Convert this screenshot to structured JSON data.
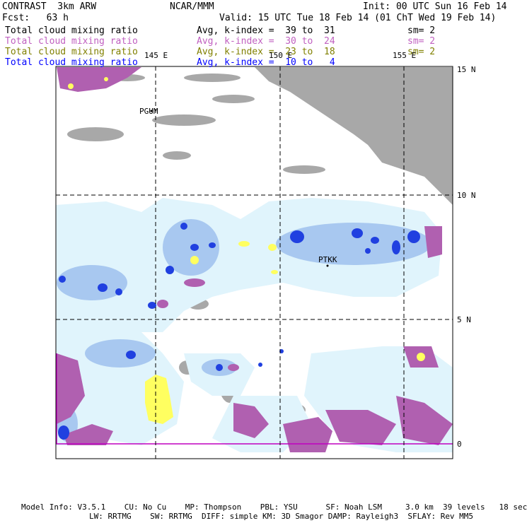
{
  "header": {
    "model": "CONTRAST  3km ARW",
    "org": "NCAR/MMM",
    "init": "Init: 00 UTC Sun 16 Feb 14",
    "fcst": "Fcst:   63 h",
    "valid": "Valid: 15 UTC Tue 18 Feb 14 (01 ChT Wed 19 Feb 14)"
  },
  "fields": [
    {
      "name": "Total cloud mixing ratio",
      "avg": "Avg, k-index =  39 to  31",
      "sm": "sm= 2",
      "color": "#000000"
    },
    {
      "name": "Total cloud mixing ratio",
      "avg": "Avg, k-index =  30 to  24",
      "sm": "sm= 2",
      "color": "#c060c0"
    },
    {
      "name": "Total cloud mixing ratio",
      "avg": "Avg, k-index =  23 to  18",
      "sm": "sm= 2",
      "color": "#808000"
    },
    {
      "name": "Total cloud mixing ratio",
      "avg": "Avg, k-index =  10 to   4",
      "sm": "",
      "color": "#0000ff"
    }
  ],
  "axes": {
    "lon_labels": [
      "145 E",
      "150 E",
      "155 E"
    ],
    "lat_labels": [
      "15 N",
      "10 N",
      "5 N",
      "0"
    ]
  },
  "stations": [
    "PGUM",
    "PTKK"
  ],
  "footer": {
    "line1": "Model Info: V3.5.1    CU: No Cu    MP: Thompson    PBL: YSU      SF: Noah LSM     3.0 km  39 levels   18 sec",
    "line2": "LW: RRTMG    SW: RRTMG  DIFF: simple KM: 3D Smagor DAMP: Rayleigh3  SFLAY: Rev MM5"
  },
  "colors": {
    "gray": "#a8a8a8",
    "light_cyan": "#e0f4fc",
    "mid_blue": "#a8c8f0",
    "blue": "#2040e0",
    "purple": "#b060b0",
    "yellow": "#ffff60",
    "grid": "#000000",
    "equator": "#c000c0"
  }
}
